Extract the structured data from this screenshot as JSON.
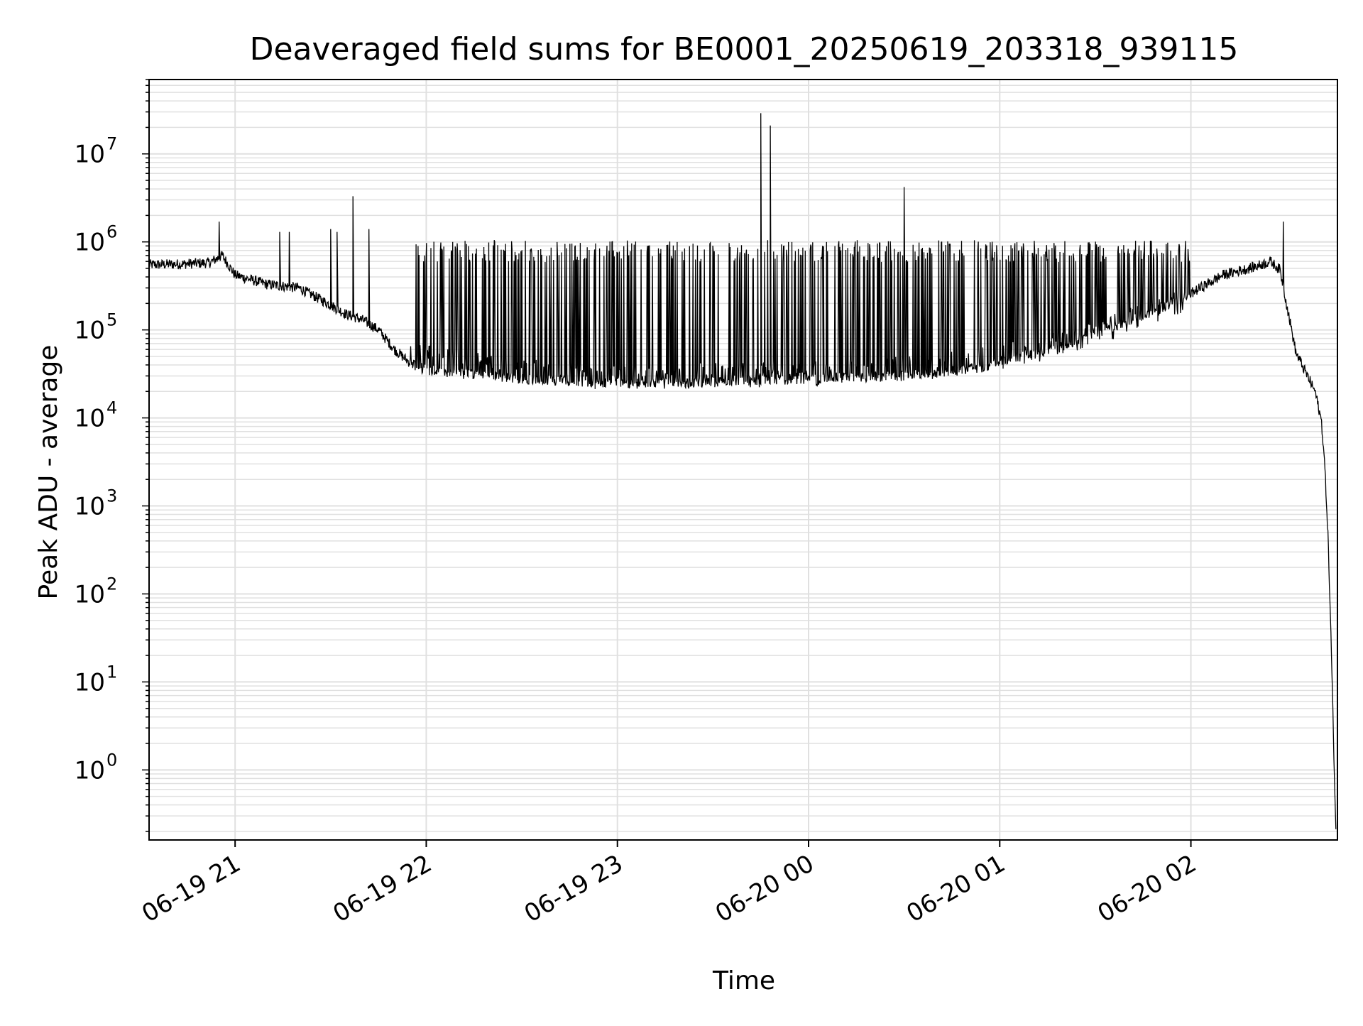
{
  "chart_data": {
    "type": "line",
    "title": "Deaveraged field sums for BE0001_20250619_203318_939115",
    "xlabel": "Time",
    "ylabel": "Peak ADU - average",
    "y_scale": "log",
    "ylim": [
      0.16,
      70000000
    ],
    "xlim": [
      "2025-06-19 20:33",
      "2025-06-20 02:46"
    ],
    "x_ticks": [
      {
        "t": "2025-06-19 21:00",
        "label": "06-19 21"
      },
      {
        "t": "2025-06-19 22:00",
        "label": "06-19 22"
      },
      {
        "t": "2025-06-19 23:00",
        "label": "06-19 23"
      },
      {
        "t": "2025-06-20 00:00",
        "label": "06-20 00"
      },
      {
        "t": "2025-06-20 01:00",
        "label": "06-20 01"
      },
      {
        "t": "2025-06-20 02:00",
        "label": "06-20 02"
      }
    ],
    "y_ticks": [
      {
        "value": 1,
        "base": "10",
        "exp": "0"
      },
      {
        "value": 10,
        "base": "10",
        "exp": "1"
      },
      {
        "value": 100,
        "base": "10",
        "exp": "2"
      },
      {
        "value": 1000,
        "base": "10",
        "exp": "3"
      },
      {
        "value": 10000,
        "base": "10",
        "exp": "4"
      },
      {
        "value": 100000,
        "base": "10",
        "exp": "5"
      },
      {
        "value": 1000000,
        "base": "10",
        "exp": "6"
      },
      {
        "value": 10000000,
        "base": "10",
        "exp": "7"
      }
    ],
    "grid": true,
    "line_color": "#000000",
    "grid_color": "#e0e0e0",
    "series": [
      {
        "baseline": [
          [
            "2025-06-19 20:33",
            550000
          ],
          [
            "2025-06-19 20:43",
            560000
          ],
          [
            "2025-06-19 20:52",
            580000
          ],
          [
            "2025-06-19 20:56",
            700000
          ],
          [
            "2025-06-19 21:00",
            420000
          ],
          [
            "2025-06-19 21:10",
            330000
          ],
          [
            "2025-06-19 21:20",
            300000
          ],
          [
            "2025-06-19 21:27",
            220000
          ],
          [
            "2025-06-19 21:35",
            150000
          ],
          [
            "2025-06-19 21:40",
            130000
          ],
          [
            "2025-06-19 21:45",
            100000
          ],
          [
            "2025-06-19 21:50",
            60000
          ],
          [
            "2025-06-19 21:55",
            42000
          ],
          [
            "2025-06-19 22:00",
            35000
          ],
          [
            "2025-06-19 22:10",
            32000
          ],
          [
            "2025-06-19 22:30",
            28000
          ],
          [
            "2025-06-19 23:00",
            25000
          ],
          [
            "2025-06-19 23:30",
            26000
          ],
          [
            "2025-06-20 00:00",
            28000
          ],
          [
            "2025-06-20 00:30",
            30000
          ],
          [
            "2025-06-20 00:40",
            32000
          ],
          [
            "2025-06-20 00:55",
            38000
          ],
          [
            "2025-06-20 01:05",
            50000
          ],
          [
            "2025-06-20 01:20",
            65000
          ],
          [
            "2025-06-20 01:30",
            95000
          ],
          [
            "2025-06-20 01:45",
            140000
          ],
          [
            "2025-06-20 02:00",
            260000
          ],
          [
            "2025-06-20 02:10",
            420000
          ],
          [
            "2025-06-20 02:20",
            520000
          ],
          [
            "2025-06-20 02:25",
            600000
          ],
          [
            "2025-06-20 02:28",
            480000
          ],
          [
            "2025-06-20 02:30",
            200000
          ],
          [
            "2025-06-20 02:33",
            55000
          ],
          [
            "2025-06-20 02:36",
            33000
          ],
          [
            "2025-06-20 02:39",
            20000
          ],
          [
            "2025-06-20 02:41",
            9000
          ],
          [
            "2025-06-20 02:42",
            3000
          ],
          [
            "2025-06-20 02:43",
            500
          ],
          [
            "2025-06-20 02:44",
            30
          ],
          [
            "2025-06-20 02:45",
            1
          ],
          [
            "2025-06-20 02:45:30",
            0.2
          ]
        ],
        "peaks": [
          [
            "2025-06-19 21:14",
            1300000
          ],
          [
            "2025-06-19 21:17",
            1300000
          ],
          [
            "2025-06-19 21:30",
            1400000
          ],
          [
            "2025-06-19 21:32",
            1300000
          ],
          [
            "2025-06-19 21:37",
            3300000
          ],
          [
            "2025-06-19 21:42",
            1400000
          ],
          [
            "2025-06-19 23:45",
            29000000
          ],
          [
            "2025-06-19 23:48",
            21000000
          ],
          [
            "2025-06-20 00:30",
            4200000
          ],
          [
            "2025-06-20 02:29",
            1700000
          ],
          [
            "2025-06-19 20:55",
            1700000
          ]
        ],
        "band_upper": 1050000,
        "band_lower": [
          [
            "2025-06-19 21:50",
            40000
          ],
          [
            "2025-06-19 22:30",
            24000
          ],
          [
            "2025-06-19 23:00",
            20000
          ],
          [
            "2025-06-19 23:45",
            22000
          ],
          [
            "2025-06-20 00:15",
            24000
          ],
          [
            "2025-06-20 00:45",
            30000
          ],
          [
            "2025-06-20 01:10",
            40000
          ],
          [
            "2025-06-20 01:35",
            75000
          ],
          [
            "2025-06-20 01:55",
            150000
          ]
        ]
      }
    ]
  }
}
